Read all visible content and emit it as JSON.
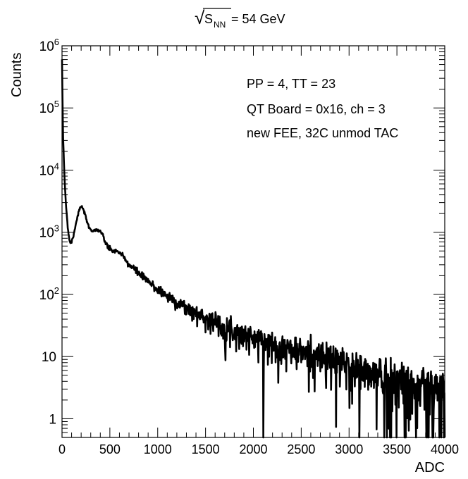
{
  "title": {
    "sqrt_symbol": "√",
    "var": "S",
    "sub": "NN",
    "rest": " = 54 GeV"
  },
  "annotations": [
    "PP = 4, TT = 23",
    "QT Board = 0x16, ch = 3",
    "new FEE, 32C unmod TAC"
  ],
  "colors": {
    "line": "#000000",
    "frame": "#000000",
    "background": "#ffffff"
  },
  "chart_data": {
    "type": "line",
    "title": "√S_NN = 54 GeV",
    "xlabel": "ADC",
    "ylabel": "Counts",
    "xlim": [
      0,
      4000
    ],
    "ylim": [
      0.5,
      1000000
    ],
    "y_scale": "log",
    "grid": false,
    "legend": "none",
    "x_ticks": [
      0,
      500,
      1000,
      1500,
      2000,
      2500,
      3000,
      3500,
      4000
    ],
    "x_tick_labels": [
      "0",
      "500",
      "1000",
      "1500",
      "2000",
      "2500",
      "3000",
      "3500",
      "4000"
    ],
    "y_ticks": [
      {
        "value": 1,
        "base": "1",
        "exp": ""
      },
      {
        "value": 10,
        "base": "10",
        "exp": ""
      },
      {
        "value": 100,
        "base": "10",
        "exp": "2"
      },
      {
        "value": 1000,
        "base": "10",
        "exp": "3"
      },
      {
        "value": 10000,
        "base": "10",
        "exp": "4"
      },
      {
        "value": 100000,
        "base": "10",
        "exp": "5"
      },
      {
        "value": 1000000,
        "base": "10",
        "exp": "6"
      }
    ],
    "series": [
      {
        "x": [
          0,
          10,
          25,
          40,
          60,
          80,
          100,
          120,
          150,
          180,
          200,
          220,
          250,
          280,
          320,
          360,
          400,
          430,
          460,
          500,
          550,
          600,
          650,
          700,
          800,
          900,
          1000,
          1100,
          1200,
          1300,
          1400,
          1500,
          1600,
          1700,
          1800,
          1900,
          2000,
          2200,
          2400,
          2600,
          2800,
          3000,
          3200,
          3400,
          3600,
          3800,
          4000
        ],
        "y": [
          600000,
          40000,
          8000,
          3000,
          1200,
          700,
          700,
          900,
          1500,
          2300,
          2600,
          2400,
          1700,
          1200,
          1050,
          1100,
          1050,
          850,
          650,
          520,
          500,
          480,
          380,
          300,
          220,
          160,
          120,
          95,
          75,
          60,
          50,
          42,
          36,
          30,
          26,
          23,
          20,
          16,
          13,
          11,
          9,
          7,
          5.5,
          4.5,
          3.5,
          3,
          2.5
        ]
      }
    ]
  }
}
